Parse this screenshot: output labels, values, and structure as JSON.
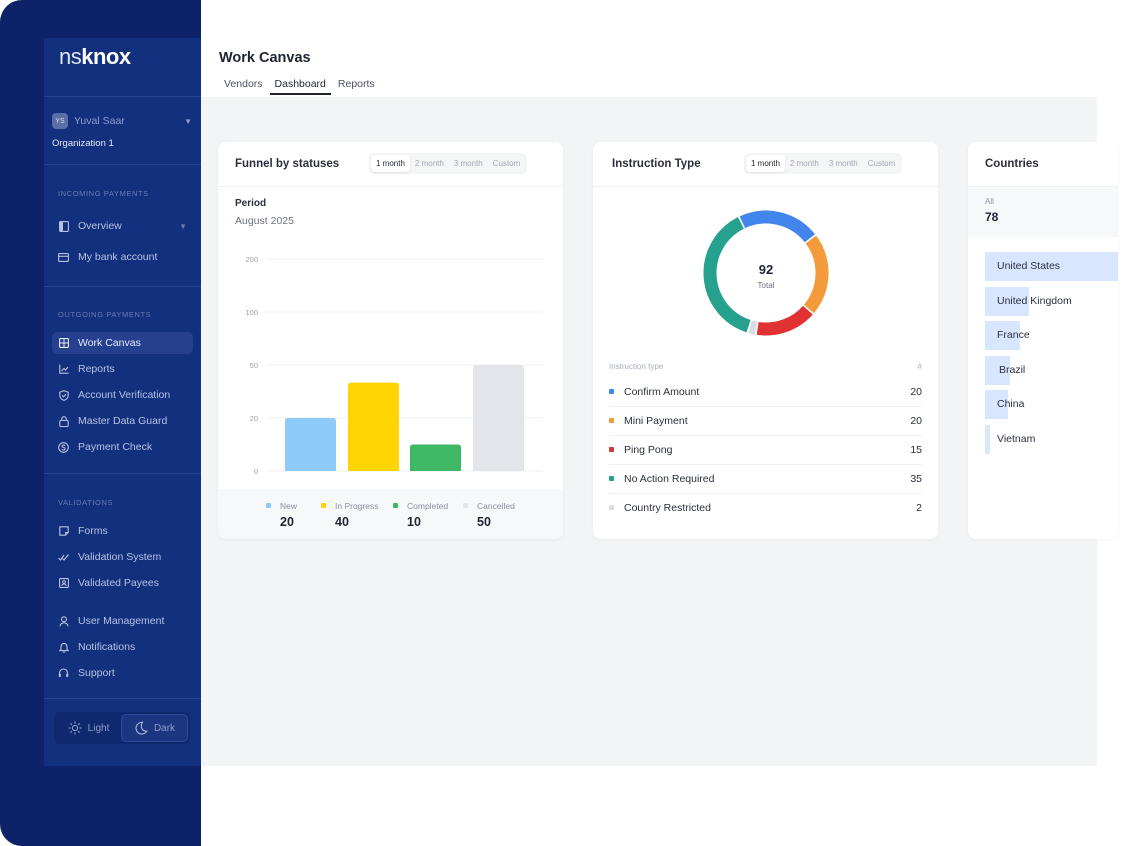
{
  "sidebar": {
    "logo_prefix": "ns",
    "logo_suffix": "knox",
    "user": {
      "initials": "YS",
      "name": "Yuval Saar"
    },
    "organization": "Organization 1",
    "sections": {
      "incoming": "INCOMING PAYMENTS",
      "outgoing": "OUTGOING PAYMENTS",
      "validations": "VALIDATIONS"
    },
    "items": [
      {
        "label": "Overview",
        "icon": "sidebar-panel-icon"
      },
      {
        "label": "My bank account",
        "icon": "credit-card-icon"
      },
      {
        "label": "Work Canvas",
        "icon": "grid-icon"
      },
      {
        "label": "Reports",
        "icon": "line-chart-icon"
      },
      {
        "label": "Account Verification",
        "icon": "shield-check-icon"
      },
      {
        "label": "Master Data Guard",
        "icon": "lock-icon"
      },
      {
        "label": "Payment Check",
        "icon": "dollar-circle-icon"
      },
      {
        "label": "Forms",
        "icon": "form-icon"
      },
      {
        "label": "Validation System",
        "icon": "double-check-icon"
      },
      {
        "label": "Validated Payees",
        "icon": "id-card-icon"
      },
      {
        "label": "User Management",
        "icon": "user-icon"
      },
      {
        "label": "Notifications",
        "icon": "bell-icon"
      },
      {
        "label": "Support",
        "icon": "headset-icon"
      }
    ],
    "theme": {
      "light": "Light",
      "dark": "Dark"
    }
  },
  "header": {
    "title": "Work Canvas",
    "tabs": [
      "Vendors",
      "Dashboard",
      "Reports"
    ]
  },
  "ranges": [
    "1 month",
    "2 month",
    "3 month",
    "Custom"
  ],
  "funnel": {
    "title": "Funnel by statuses",
    "period_label": "Period",
    "period_value": "August 2025"
  },
  "instruction": {
    "title": "Instruction Type",
    "total_value": "92",
    "total_label": "Total",
    "col_type": "Instruction type",
    "col_count": "#"
  },
  "countries": {
    "title": "Countries",
    "all_label": "All",
    "all_value": "78",
    "list": [
      {
        "name": "United States",
        "share": 1.0
      },
      {
        "name": "United Kingdom",
        "share": 0.33
      },
      {
        "name": "France",
        "share": 0.26
      },
      {
        "name": "Brazil",
        "share": 0.19
      },
      {
        "name": "China",
        "share": 0.17
      },
      {
        "name": "Vietnam",
        "share": 0.04
      }
    ]
  },
  "chart_data": [
    {
      "type": "bar",
      "categories": [
        "New",
        "In Progress",
        "Completed",
        "Cancelled"
      ],
      "values": [
        20,
        40,
        10,
        50
      ],
      "ticks": [
        "200",
        "100",
        "50",
        "20",
        "0"
      ],
      "colors": [
        "#8ecbfb",
        "#ffd400",
        "#3fb866",
        "#e4e5ea"
      ],
      "legend_placement": "bottom",
      "grid": true
    },
    {
      "type": "pie",
      "categories": [
        "Confirm Amount",
        "Mini Payment",
        "Ping Pong",
        "No Action Required",
        "Country Restricted"
      ],
      "values": [
        20,
        20,
        15,
        35,
        2
      ],
      "colors": [
        "#4285ec",
        "#f39a3a",
        "#e03232",
        "#25a18e",
        "#d8dbe2"
      ],
      "legend_placement": "bottom"
    }
  ]
}
